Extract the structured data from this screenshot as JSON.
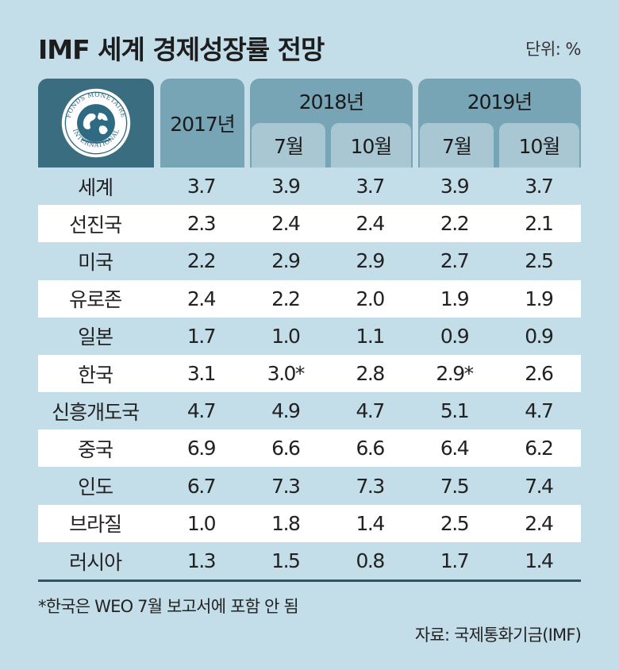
{
  "title": "IMF 세계 경제성장률 전망",
  "unit": "단위: %",
  "logo": {
    "icon": "imf-seal-icon",
    "text_top": "FONDS MONETAIRE",
    "text_bottom": "INTERNATIONAL"
  },
  "header": {
    "col_2017": "2017년",
    "group_2018": "2018년",
    "group_2019": "2019년",
    "sub_2018_jul": "7월",
    "sub_2018_oct": "10월",
    "sub_2019_jul": "7월",
    "sub_2019_oct": "10월"
  },
  "rows": [
    {
      "name": "세계",
      "v": [
        "3.7",
        "3.9",
        "3.7",
        "3.9",
        "3.7"
      ]
    },
    {
      "name": "선진국",
      "v": [
        "2.3",
        "2.4",
        "2.4",
        "2.2",
        "2.1"
      ]
    },
    {
      "name": "미국",
      "v": [
        "2.2",
        "2.9",
        "2.9",
        "2.7",
        "2.5"
      ]
    },
    {
      "name": "유로존",
      "v": [
        "2.4",
        "2.2",
        "2.0",
        "1.9",
        "1.9"
      ]
    },
    {
      "name": "일본",
      "v": [
        "1.7",
        "1.0",
        "1.1",
        "0.9",
        "0.9"
      ]
    },
    {
      "name": "한국",
      "v": [
        "3.1",
        "3.0*",
        "2.8",
        "2.9*",
        "2.6"
      ]
    },
    {
      "name": "신흥개도국",
      "v": [
        "4.7",
        "4.9",
        "4.7",
        "5.1",
        "4.7"
      ]
    },
    {
      "name": "중국",
      "v": [
        "6.9",
        "6.6",
        "6.6",
        "6.4",
        "6.2"
      ]
    },
    {
      "name": "인도",
      "v": [
        "6.7",
        "7.3",
        "7.3",
        "7.5",
        "7.4"
      ]
    },
    {
      "name": "브라질",
      "v": [
        "1.0",
        "1.8",
        "1.4",
        "2.5",
        "2.4"
      ]
    },
    {
      "name": "러시아",
      "v": [
        "1.3",
        "1.5",
        "0.8",
        "1.7",
        "1.4"
      ]
    }
  ],
  "footnote": "*한국은 WEO 7월 보고서에 포함 안 됨",
  "source": "자료: 국제통화기금(IMF)",
  "colors": {
    "background": "#c3dde9",
    "header_dark": "#3a6d80",
    "header_mid": "#78a5b6",
    "header_light": "#a9c7d3",
    "row_stripe": "#ffffff"
  }
}
